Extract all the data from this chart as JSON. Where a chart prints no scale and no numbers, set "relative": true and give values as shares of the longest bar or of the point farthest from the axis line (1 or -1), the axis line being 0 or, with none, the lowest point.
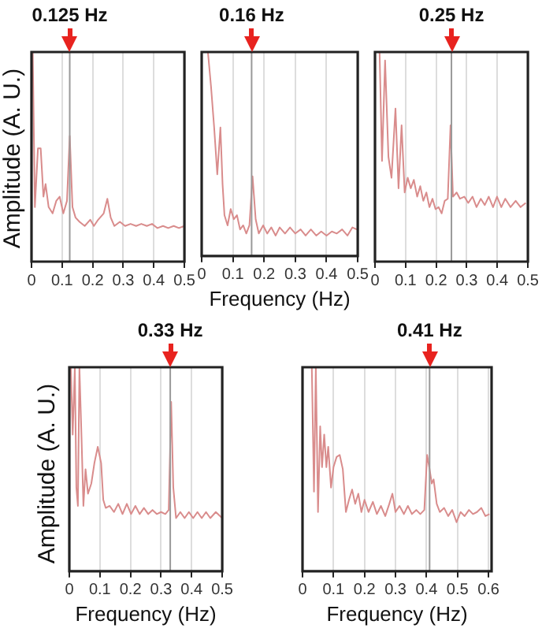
{
  "chart_data": [
    {
      "type": "line",
      "relative": true,
      "ylabel": "Amplitude (A. U.)",
      "color": "#d98c8c",
      "marker": "none",
      "grid": "x",
      "xlim": [
        0,
        0.5
      ],
      "xticks": [
        0,
        0.1,
        0.2,
        0.3,
        0.4,
        0.5
      ],
      "ref_lines": [
        {
          "axis": "x",
          "value": 0.125,
          "label": "0.125 Hz",
          "color": "#999999"
        }
      ],
      "x": [
        0.004,
        0.011,
        0.021,
        0.03,
        0.039,
        0.046,
        0.056,
        0.069,
        0.081,
        0.092,
        0.104,
        0.116,
        0.125,
        0.134,
        0.144,
        0.157,
        0.174,
        0.192,
        0.204,
        0.218,
        0.236,
        0.248,
        0.259,
        0.271,
        0.289,
        0.306,
        0.324,
        0.342,
        0.359,
        0.377,
        0.394,
        0.412,
        0.43,
        0.447,
        0.465,
        0.482,
        0.5
      ],
      "values": [
        1,
        0.26,
        0.54,
        0.54,
        0.31,
        0.37,
        0.26,
        0.23,
        0.29,
        0.31,
        0.23,
        0.29,
        0.6,
        0.26,
        0.21,
        0.19,
        0.17,
        0.2,
        0.17,
        0.2,
        0.23,
        0.3,
        0.21,
        0.17,
        0.19,
        0.17,
        0.18,
        0.17,
        0.18,
        0.17,
        0.18,
        0.16,
        0.17,
        0.16,
        0.17,
        0.16,
        0.17
      ]
    },
    {
      "type": "line",
      "relative": true,
      "xlabel": "Frequency (Hz)",
      "color": "#d98c8c",
      "marker": "none",
      "grid": "x",
      "xlim": [
        0,
        0.5
      ],
      "xticks": [
        0,
        0.1,
        0.2,
        0.3,
        0.4,
        0.5
      ],
      "ref_lines": [
        {
          "axis": "x",
          "value": 0.16,
          "label": "0.16 Hz",
          "color": "#999999"
        }
      ],
      "x": [
        0.02,
        0.03,
        0.04,
        0.05,
        0.06,
        0.067,
        0.073,
        0.083,
        0.093,
        0.103,
        0.113,
        0.123,
        0.133,
        0.143,
        0.153,
        0.163,
        0.173,
        0.183,
        0.197,
        0.21,
        0.223,
        0.237,
        0.25,
        0.267,
        0.283,
        0.3,
        0.317,
        0.333,
        0.35,
        0.367,
        0.383,
        0.4,
        0.417,
        0.433,
        0.45,
        0.467,
        0.483,
        0.497
      ],
      "values": [
        1,
        0.83,
        0.63,
        0.4,
        0.63,
        0.35,
        0.2,
        0.15,
        0.23,
        0.18,
        0.2,
        0.13,
        0.15,
        0.11,
        0.15,
        0.39,
        0.18,
        0.11,
        0.15,
        0.11,
        0.14,
        0.1,
        0.14,
        0.11,
        0.14,
        0.11,
        0.13,
        0.1,
        0.13,
        0.1,
        0.12,
        0.1,
        0.12,
        0.11,
        0.13,
        0.1,
        0.14,
        0.13
      ]
    },
    {
      "type": "line",
      "relative": true,
      "color": "#d98c8c",
      "marker": "none",
      "grid": "x",
      "xlim": [
        0,
        0.5
      ],
      "xticks": [
        0,
        0.1,
        0.2,
        0.3,
        0.4,
        0.5
      ],
      "ref_lines": [
        {
          "axis": "x",
          "value": 0.25,
          "label": "0.25 Hz",
          "color": "#999999"
        }
      ],
      "x": [
        0.015,
        0.023,
        0.033,
        0.044,
        0.054,
        0.067,
        0.077,
        0.087,
        0.097,
        0.107,
        0.117,
        0.127,
        0.138,
        0.148,
        0.158,
        0.168,
        0.178,
        0.188,
        0.198,
        0.208,
        0.218,
        0.228,
        0.238,
        0.247,
        0.255,
        0.267,
        0.278,
        0.292,
        0.305,
        0.319,
        0.332,
        0.346,
        0.359,
        0.372,
        0.386,
        0.399,
        0.413,
        0.426,
        0.443,
        0.46,
        0.476,
        0.493
      ],
      "values": [
        1,
        0.48,
        0.96,
        0.5,
        0.4,
        0.73,
        0.35,
        0.65,
        0.33,
        0.4,
        0.35,
        0.39,
        0.31,
        0.36,
        0.29,
        0.33,
        0.26,
        0.3,
        0.25,
        0.26,
        0.23,
        0.29,
        0.3,
        0.65,
        0.31,
        0.33,
        0.3,
        0.31,
        0.28,
        0.31,
        0.26,
        0.3,
        0.27,
        0.31,
        0.26,
        0.31,
        0.26,
        0.3,
        0.26,
        0.29,
        0.26,
        0.28
      ]
    },
    {
      "type": "line",
      "relative": true,
      "ylabel": "Amplitude (A. U.)",
      "xlabel": "Frequency (Hz)",
      "color": "#d98c8c",
      "marker": "none",
      "grid": "x",
      "xlim": [
        0,
        0.5
      ],
      "xticks": [
        0,
        0.1,
        0.2,
        0.3,
        0.4,
        0.5
      ],
      "ref_lines": [
        {
          "axis": "x",
          "value": 0.33,
          "label": "0.33 Hz",
          "color": "#999999"
        }
      ],
      "x": [
        0.005,
        0.011,
        0.018,
        0.023,
        0.028,
        0.033,
        0.04,
        0.046,
        0.053,
        0.061,
        0.072,
        0.082,
        0.093,
        0.104,
        0.111,
        0.119,
        0.132,
        0.146,
        0.16,
        0.174,
        0.188,
        0.202,
        0.216,
        0.23,
        0.244,
        0.258,
        0.272,
        0.286,
        0.3,
        0.314,
        0.325,
        0.333,
        0.34,
        0.349,
        0.363,
        0.377,
        0.391,
        0.405,
        0.419,
        0.433,
        0.447,
        0.461,
        0.479,
        0.5
      ],
      "values": [
        1,
        0.67,
        1,
        0.41,
        0.32,
        1,
        0.65,
        0.32,
        0.5,
        0.38,
        0.43,
        0.53,
        0.61,
        0.53,
        0.35,
        0.31,
        0.32,
        0.29,
        0.33,
        0.28,
        0.33,
        0.28,
        0.32,
        0.28,
        0.31,
        0.28,
        0.3,
        0.28,
        0.29,
        0.28,
        0.3,
        0.83,
        0.41,
        0.26,
        0.29,
        0.26,
        0.29,
        0.26,
        0.29,
        0.26,
        0.29,
        0.26,
        0.29,
        0.26
      ]
    },
    {
      "type": "line",
      "relative": true,
      "xlabel": "Frequency (Hz)",
      "color": "#d98c8c",
      "marker": "none",
      "grid": "x",
      "xlim": [
        0,
        0.61
      ],
      "xticks": [
        0,
        0.1,
        0.2,
        0.3,
        0.4,
        0.5,
        0.6
      ],
      "ref_lines": [
        {
          "axis": "x",
          "value": 0.41,
          "label": "0.41 Hz",
          "color": "#999999"
        }
      ],
      "x": [
        0.03,
        0.037,
        0.043,
        0.05,
        0.057,
        0.063,
        0.07,
        0.077,
        0.083,
        0.092,
        0.1,
        0.11,
        0.12,
        0.13,
        0.14,
        0.15,
        0.16,
        0.17,
        0.18,
        0.19,
        0.2,
        0.213,
        0.227,
        0.24,
        0.253,
        0.267,
        0.28,
        0.29,
        0.3,
        0.313,
        0.327,
        0.34,
        0.353,
        0.367,
        0.38,
        0.393,
        0.402,
        0.41,
        0.417,
        0.423,
        0.433,
        0.443,
        0.457,
        0.47,
        0.483,
        0.497,
        0.51,
        0.523,
        0.537,
        0.55,
        0.563,
        0.577,
        0.59,
        0.603
      ],
      "values": [
        1,
        0.39,
        1,
        0.29,
        0.71,
        0.51,
        0.67,
        0.51,
        0.61,
        0.41,
        0.51,
        0.56,
        0.57,
        0.5,
        0.29,
        0.35,
        0.4,
        0.33,
        0.38,
        0.29,
        0.35,
        0.29,
        0.34,
        0.28,
        0.32,
        0.27,
        0.33,
        0.38,
        0.29,
        0.32,
        0.28,
        0.32,
        0.28,
        0.3,
        0.28,
        0.3,
        0.57,
        0.5,
        0.43,
        0.45,
        0.33,
        0.29,
        0.31,
        0.27,
        0.3,
        0.24,
        0.29,
        0.27,
        0.3,
        0.28,
        0.29,
        0.31,
        0.27,
        0.28
      ]
    }
  ]
}
